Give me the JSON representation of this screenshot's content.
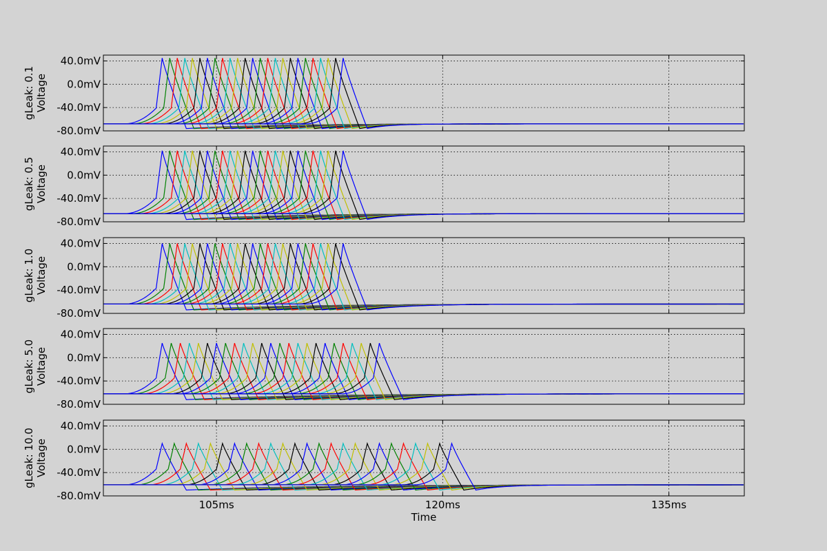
{
  "chart_data": {
    "type": "line",
    "figure_xlabel": "Time",
    "x_ticks": [
      105,
      120,
      135
    ],
    "x_tick_labels": [
      "105ms",
      "120ms",
      "135ms"
    ],
    "xlim": [
      97.5,
      140
    ],
    "y_ticks": [
      40,
      0,
      -40,
      -80
    ],
    "y_tick_labels": [
      "40.0mV",
      "0.0mV",
      "-40.0mV",
      "-80.0mV"
    ],
    "ylim": [
      -80,
      50
    ],
    "grid": true,
    "series_colors": [
      "#0000ff",
      "#008000",
      "#ff0000",
      "#00bfbf",
      "#bfbf00",
      "#000000"
    ],
    "trace_count": 25,
    "panels": [
      {
        "ylabel_top": "gLeak: 0.1",
        "ylabel_bottom": "Voltage",
        "rest": -68,
        "peak": 45,
        "first_peak": 101.4,
        "spacing": 0.5,
        "trough": -76,
        "recover": 118
      },
      {
        "ylabel_top": "gLeak: 0.5",
        "ylabel_bottom": "Voltage",
        "rest": -66,
        "peak": 42,
        "first_peak": 101.4,
        "spacing": 0.5,
        "trough": -76,
        "recover": 120
      },
      {
        "ylabel_top": "gLeak: 1.0",
        "ylabel_bottom": "Voltage",
        "rest": -64,
        "peak": 40,
        "first_peak": 101.4,
        "spacing": 0.5,
        "trough": -74,
        "recover": 122
      },
      {
        "ylabel_top": "gLeak: 5.0",
        "ylabel_bottom": "Voltage",
        "rest": -62,
        "peak": 25,
        "first_peak": 101.4,
        "spacing": 0.6,
        "trough": -72,
        "recover": 124
      },
      {
        "ylabel_top": "gLeak: 10.0",
        "ylabel_bottom": "Voltage",
        "rest": -61,
        "peak": 10,
        "first_peak": 101.4,
        "spacing": 0.8,
        "trough": -70,
        "recover": 126
      }
    ]
  }
}
